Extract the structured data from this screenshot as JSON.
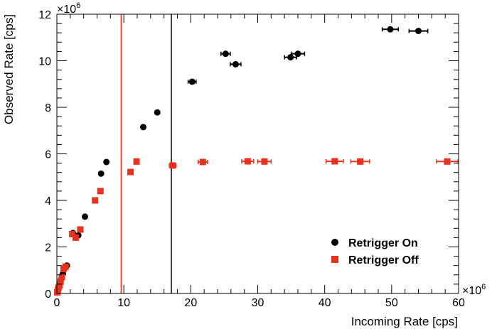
{
  "chart_data": {
    "type": "scatter",
    "title": "",
    "xlabel": "Incoming Rate [cps]",
    "ylabel": "Observed Rate [cps]",
    "x_multiplier_label": "×10",
    "x_multiplier_exp": "6",
    "y_multiplier_label": "×10",
    "y_multiplier_exp": "6",
    "xlim": [
      0,
      60
    ],
    "ylim": [
      0,
      12
    ],
    "x_ticks": [
      "0",
      "10",
      "20",
      "30",
      "40",
      "50",
      "60"
    ],
    "y_ticks": [
      "0",
      "2",
      "4",
      "6",
      "8",
      "10",
      "12"
    ],
    "grid": false,
    "legend_position": "bottom-right",
    "vertical_lines": [
      {
        "x": 9.6,
        "color": "#e8321e"
      },
      {
        "x": 17.1,
        "color": "#000000"
      }
    ],
    "series": [
      {
        "name": "Retrigger On",
        "marker": "circle",
        "color": "#000000",
        "points": [
          {
            "x": 0.05,
            "y": 0.05
          },
          {
            "x": 0.15,
            "y": 0.15
          },
          {
            "x": 0.25,
            "y": 0.25
          },
          {
            "x": 0.4,
            "y": 0.38
          },
          {
            "x": 0.55,
            "y": 0.52
          },
          {
            "x": 0.7,
            "y": 0.65
          },
          {
            "x": 0.9,
            "y": 0.85
          },
          {
            "x": 1.2,
            "y": 1.1
          },
          {
            "x": 1.5,
            "y": 1.2
          },
          {
            "x": 2.4,
            "y": 2.6
          },
          {
            "x": 3.2,
            "y": 2.5
          },
          {
            "x": 4.2,
            "y": 3.3
          },
          {
            "x": 6.6,
            "y": 5.15
          },
          {
            "x": 7.4,
            "y": 5.65
          },
          {
            "x": 12.9,
            "y": 7.15
          },
          {
            "x": 15.0,
            "y": 7.78
          },
          {
            "x": 20.2,
            "y": 9.1,
            "xerr": 0.6
          },
          {
            "x": 25.2,
            "y": 10.3,
            "xerr": 0.7
          },
          {
            "x": 26.7,
            "y": 9.85,
            "xerr": 0.8
          },
          {
            "x": 34.9,
            "y": 10.15,
            "xerr": 0.9
          },
          {
            "x": 36.0,
            "y": 10.3,
            "xerr": 1.0
          },
          {
            "x": 49.8,
            "y": 11.35,
            "xerr": 1.2
          },
          {
            "x": 54.0,
            "y": 11.28,
            "xerr": 1.4
          }
        ]
      },
      {
        "name": "Retrigger Off",
        "marker": "square",
        "color": "#e8321e",
        "points": [
          {
            "x": 0.05,
            "y": 0.05
          },
          {
            "x": 0.15,
            "y": 0.15
          },
          {
            "x": 0.25,
            "y": 0.25
          },
          {
            "x": 0.4,
            "y": 0.35
          },
          {
            "x": 0.55,
            "y": 0.5
          },
          {
            "x": 0.75,
            "y": 0.7
          },
          {
            "x": 1.0,
            "y": 1.05
          },
          {
            "x": 1.3,
            "y": 1.15
          },
          {
            "x": 2.3,
            "y": 2.55
          },
          {
            "x": 2.8,
            "y": 2.4
          },
          {
            "x": 3.5,
            "y": 2.75
          },
          {
            "x": 5.7,
            "y": 4.0
          },
          {
            "x": 6.5,
            "y": 4.4
          },
          {
            "x": 11.0,
            "y": 5.22
          },
          {
            "x": 11.9,
            "y": 5.67
          },
          {
            "x": 17.3,
            "y": 5.5,
            "xerr": 0.5
          },
          {
            "x": 21.8,
            "y": 5.65,
            "xerr": 0.7
          },
          {
            "x": 28.5,
            "y": 5.68,
            "xerr": 0.9
          },
          {
            "x": 31.0,
            "y": 5.67,
            "xerr": 1.0
          },
          {
            "x": 41.5,
            "y": 5.68,
            "xerr": 1.3
          },
          {
            "x": 45.3,
            "y": 5.67,
            "xerr": 1.4
          },
          {
            "x": 58.3,
            "y": 5.67,
            "xerr": 1.6
          }
        ]
      }
    ]
  }
}
